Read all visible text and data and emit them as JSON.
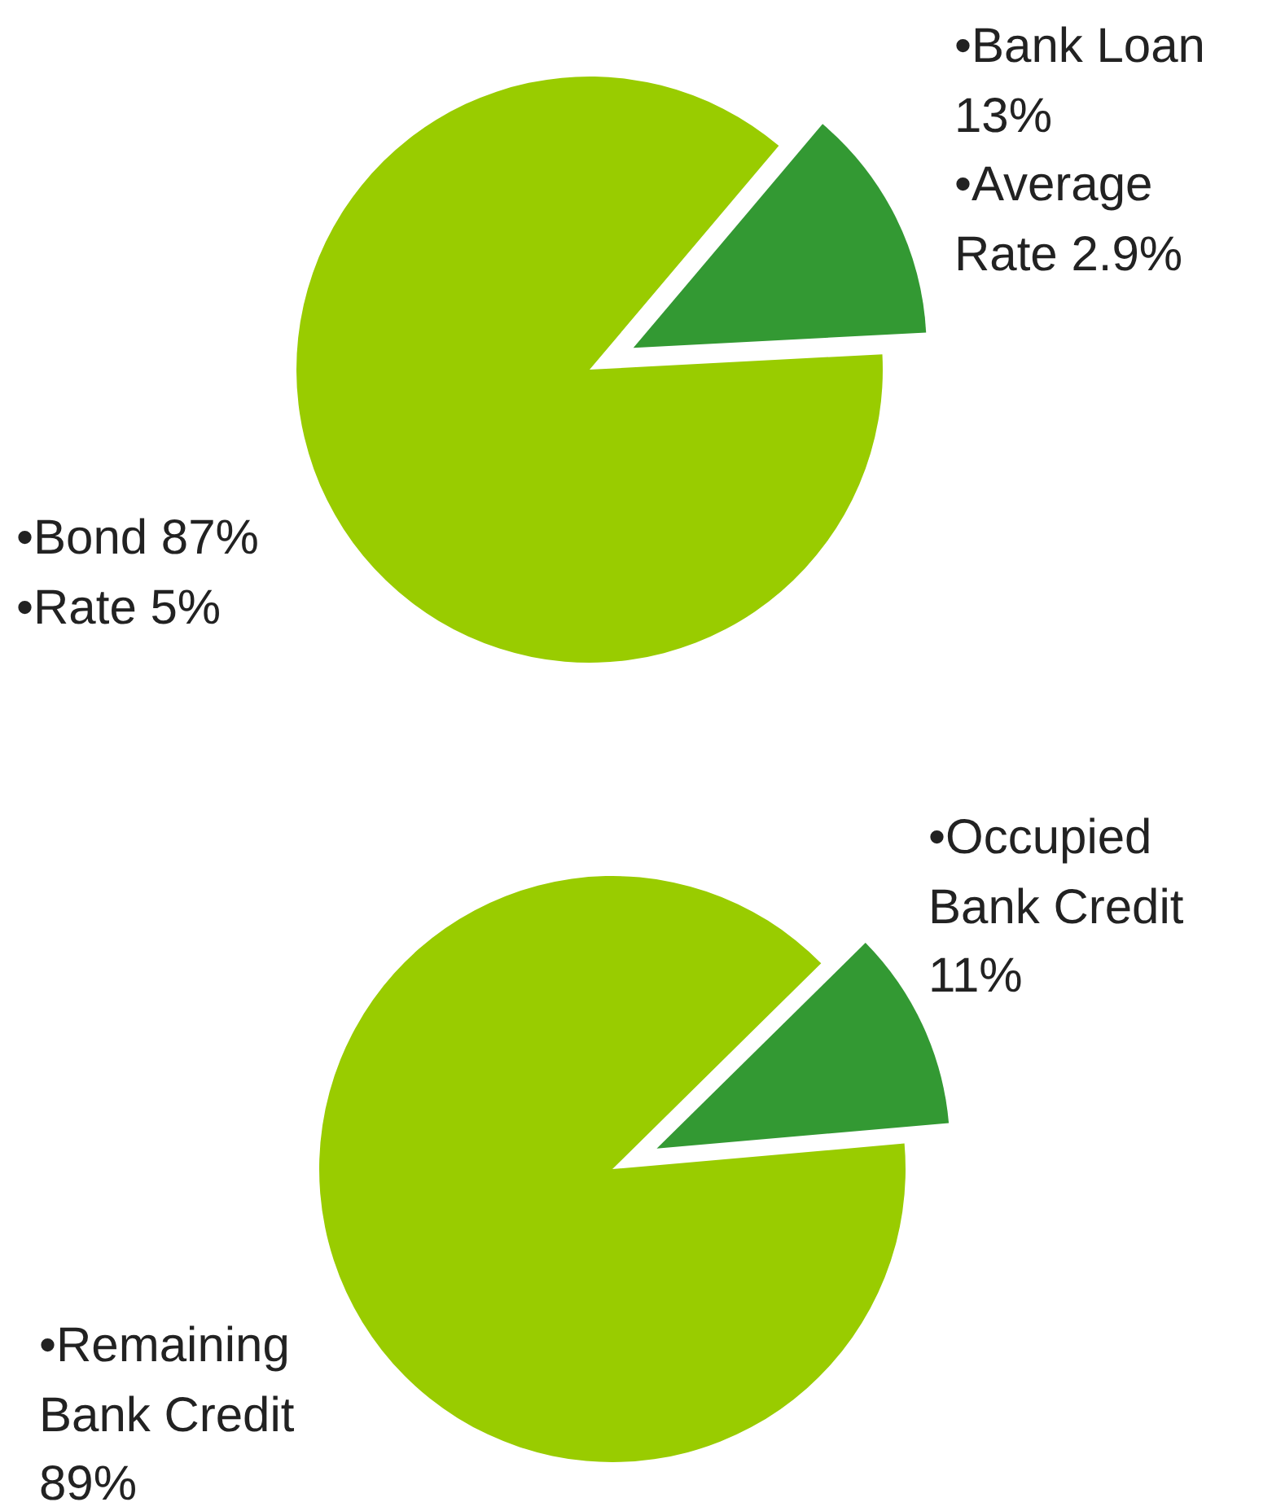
{
  "chart_data": [
    {
      "type": "pie",
      "categories": [
        "•Bank Loan",
        "•Bond"
      ],
      "values": [
        13,
        87
      ],
      "value_labels": [
        "13%",
        "87%"
      ],
      "colors": [
        "#339933",
        "#99cc00"
      ],
      "annotations": [
        "•Average Rate 2.9%",
        "•Rate 5%"
      ]
    },
    {
      "type": "pie",
      "categories": [
        "•Occupied Bank Credit",
        "•Remaining Bank Credit"
      ],
      "values": [
        11,
        89
      ],
      "value_labels": [
        "11%",
        "89%"
      ],
      "colors": [
        "#339933",
        "#99cc00"
      ]
    }
  ]
}
